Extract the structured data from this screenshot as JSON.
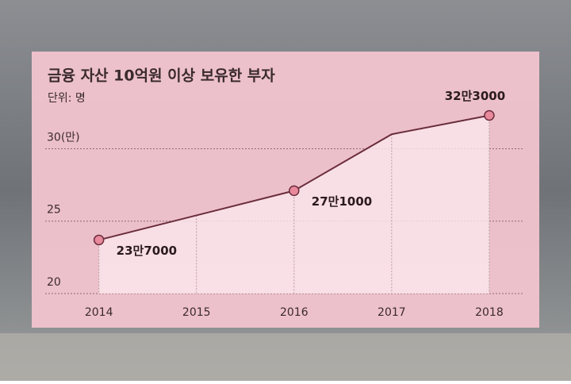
{
  "chart_data": {
    "type": "line",
    "title": "금융 자산 10억원 이상 보유한 부자",
    "subtitle": "단위: 명",
    "x": [
      2014,
      2015,
      2016,
      2017,
      2018
    ],
    "xlim": [
      2013.45,
      2018.35
    ],
    "xticks": [
      2014,
      2015,
      2016,
      2017,
      2018
    ],
    "ylim": [
      20,
      32.6
    ],
    "yticks": [
      20,
      25,
      {
        "value": 30,
        "label": "30(만)"
      }
    ],
    "grid": true,
    "series": [
      {
        "name": "부자",
        "color": "#6b2d3c",
        "values": [
          23.7,
          25.4,
          27.1,
          31.0,
          32.3
        ],
        "value_labels": [
          "23만7000",
          null,
          "27만1000",
          null,
          "32만3000"
        ]
      }
    ]
  }
}
